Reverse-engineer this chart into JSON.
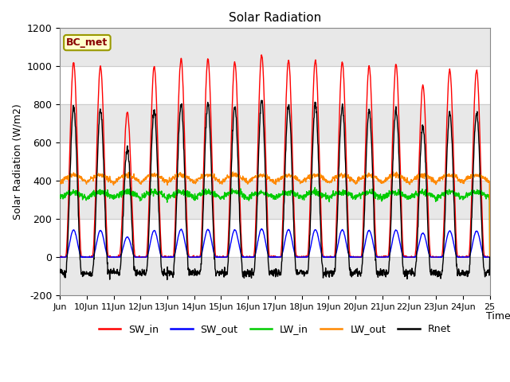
{
  "title": "Solar Radiation",
  "ylabel": "Solar Radiation (W/m2)",
  "xlabel": "Time",
  "annotation": "BC_met",
  "ylim": [
    -200,
    1200
  ],
  "yticks": [
    -200,
    0,
    200,
    400,
    600,
    800,
    1000,
    1200
  ],
  "xtick_days": [
    9,
    10,
    11,
    12,
    13,
    14,
    15,
    16,
    17,
    18,
    19,
    20,
    21,
    22,
    23,
    24,
    25
  ],
  "xtick_labels": [
    "Jun",
    "10Jun",
    "11Jun",
    "12Jun",
    "13Jun",
    "14Jun",
    "15Jun",
    "16Jun",
    "17Jun",
    "18Jun",
    "19Jun",
    "20Jun",
    "21Jun",
    "22Jun",
    "23Jun",
    "24Jun",
    "25"
  ],
  "series_colors": {
    "SW_in": "#ff0000",
    "SW_out": "#0000ff",
    "LW_in": "#00cc00",
    "LW_out": "#ff8800",
    "Rnet": "#000000"
  },
  "band_color": "#e8e8e8",
  "band_ranges": [
    [
      -200,
      0
    ],
    [
      200,
      400
    ],
    [
      600,
      800
    ],
    [
      1000,
      1200
    ]
  ],
  "annotation_bg": "#ffffcc",
  "annotation_text_color": "#880000",
  "annotation_border_color": "#999900",
  "sw_peaks": [
    1020,
    1000,
    760,
    1000,
    1040,
    1040,
    1020,
    1060,
    1030,
    1030,
    1020,
    1000,
    1010,
    900,
    980,
    980
  ],
  "lw_in_base": 310,
  "lw_out_base": 390,
  "figsize": [
    6.4,
    4.8
  ],
  "dpi": 100
}
